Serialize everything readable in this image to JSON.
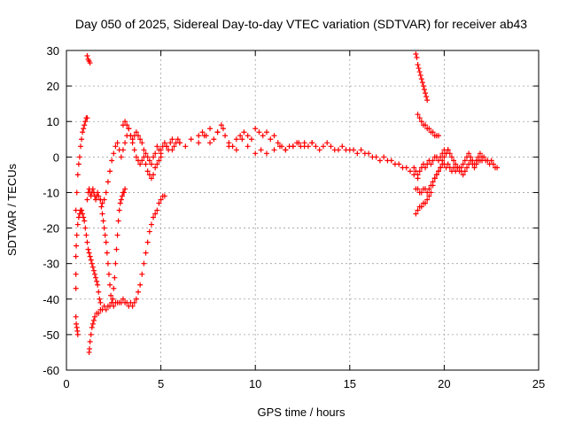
{
  "chart_data": {
    "type": "scatter",
    "title": "Day 050 of 2025, Sidereal Day-to-day VTEC variation (SDTVAR) for receiver ab43",
    "xlabel": "GPS time / hours",
    "ylabel": "SDTVAR / TECUs",
    "xlim": [
      0,
      25
    ],
    "ylim": [
      -60,
      30
    ],
    "xticks": [
      0,
      5,
      10,
      15,
      20,
      25
    ],
    "yticks": [
      -60,
      -50,
      -40,
      -30,
      -20,
      -10,
      0,
      10,
      20,
      30
    ],
    "grid": true,
    "marker": "+",
    "color": "#ff0000",
    "series": [
      {
        "name": "s1",
        "x": [
          0.5,
          0.55,
          0.6,
          0.65,
          0.7,
          0.75,
          0.8,
          0.85,
          0.9,
          0.95,
          1.0,
          1.05,
          1.1
        ],
        "y": [
          -15,
          -10,
          -5,
          -2,
          0,
          3,
          5,
          7,
          8,
          9,
          10,
          11,
          11
        ]
      },
      {
        "name": "s2",
        "x": [
          0.5,
          0.52,
          0.55,
          0.58,
          0.6
        ],
        "y": [
          -45,
          -47,
          -48,
          -49,
          -50
        ]
      },
      {
        "name": "s3",
        "x": [
          0.5,
          0.5,
          0.5,
          0.52,
          0.55,
          0.6,
          0.65,
          0.7,
          0.75,
          0.8,
          0.85,
          0.9,
          0.95,
          1.0,
          1.05,
          1.1,
          1.15,
          1.2,
          1.25,
          1.3,
          1.35,
          1.4,
          1.45,
          1.5,
          1.55,
          1.6,
          1.65,
          1.7,
          1.75,
          1.8
        ],
        "y": [
          -37,
          -33,
          -28,
          -25,
          -22,
          -19,
          -17,
          -16,
          -15,
          -15,
          -16,
          -17,
          -18,
          -20,
          -22,
          -24,
          -26,
          -27,
          -28,
          -29,
          -30,
          -31,
          -32,
          -33,
          -34,
          -35,
          -36,
          -38,
          -40,
          -41
        ]
      },
      {
        "name": "s4",
        "x": [
          1.2,
          1.22,
          1.25,
          1.3,
          1.35,
          1.4,
          1.45,
          1.5,
          1.6,
          1.7,
          1.8,
          1.9,
          2.0,
          2.1,
          2.2,
          2.3,
          2.4,
          2.5,
          2.6,
          2.7,
          2.8,
          2.9,
          3.0,
          3.1,
          3.2,
          3.3,
          3.4,
          3.5,
          3.6,
          3.7,
          3.8,
          3.9,
          4.0,
          4.1,
          4.2,
          4.3,
          4.4,
          4.5,
          4.6,
          4.7,
          4.8,
          4.9,
          5.0,
          5.1,
          5.2
        ],
        "y": [
          -55,
          -54,
          -52,
          -50,
          -48,
          -47,
          -46,
          -45,
          -44,
          -44,
          -43,
          -43,
          -42,
          -43,
          -42,
          -42,
          -41,
          -42,
          -41,
          -41,
          -41,
          -41,
          -40,
          -41,
          -41,
          -42,
          -41,
          -42,
          -41,
          -40,
          -38,
          -36,
          -33,
          -30,
          -27,
          -24,
          -21,
          -19,
          -17,
          -16,
          -15,
          -13,
          -12,
          -11,
          -11
        ]
      },
      {
        "name": "s5",
        "x": [
          1.1,
          1.15,
          1.2,
          1.25,
          1.3,
          1.35,
          1.4,
          1.45,
          1.5,
          1.55,
          1.6,
          1.65,
          1.7,
          1.8,
          1.9,
          2.0,
          2.1,
          2.2,
          2.3,
          2.4,
          2.5,
          2.6,
          2.7,
          2.8,
          2.9,
          3.0,
          3.1,
          3.2,
          3.3,
          3.4,
          3.5,
          3.6,
          3.7,
          3.8,
          3.9,
          4.0,
          4.1,
          4.2,
          4.3,
          4.4,
          4.5,
          4.6,
          4.7,
          4.8,
          4.9,
          5.0,
          5.1,
          5.2,
          5.3,
          5.4,
          5.5,
          5.6,
          5.7,
          5.8,
          5.9,
          6.0
        ],
        "y": [
          -12,
          -10,
          -9,
          -10,
          -11,
          -10,
          -9,
          -10,
          -11,
          -12,
          -11,
          -10,
          -11,
          -12,
          -13,
          -12,
          -10,
          -7,
          -4,
          -1,
          1,
          3,
          4,
          2,
          0,
          2,
          4,
          6,
          8,
          6,
          5,
          6,
          7,
          6,
          5,
          4,
          2,
          1,
          0,
          -1,
          -2,
          0,
          1,
          3,
          2,
          1,
          3,
          4,
          3,
          2,
          4,
          5,
          3,
          4,
          5,
          4
        ]
      },
      {
        "name": "s6",
        "x": [
          1.8,
          1.85,
          1.9,
          1.95,
          2.0,
          2.05,
          2.1,
          2.15,
          2.2,
          2.25,
          2.3,
          2.35,
          2.4,
          2.45,
          2.5,
          2.55,
          2.6,
          2.65,
          2.7,
          2.75,
          2.8,
          2.85,
          2.9,
          2.95,
          3.0,
          3.05,
          3.1
        ],
        "y": [
          -12,
          -14,
          -16,
          -18,
          -20,
          -22,
          -24,
          -27,
          -30,
          -33,
          -36,
          -39,
          -41,
          -40,
          -37,
          -34,
          -30,
          -26,
          -22,
          -18,
          -15,
          -13,
          -12,
          -11,
          -10,
          -10,
          -9
        ]
      },
      {
        "name": "s7",
        "x": [
          1.1,
          1.15,
          1.2,
          1.25
        ],
        "y": [
          28.5,
          27.5,
          27,
          26.5
        ]
      },
      {
        "name": "s8",
        "x": [
          3.0,
          3.1,
          3.2,
          3.3,
          3.4,
          3.5,
          3.6,
          3.7,
          3.8,
          3.9,
          4.0,
          4.1,
          4.2,
          4.3,
          4.4,
          4.5,
          4.6,
          4.7,
          4.8,
          4.9,
          5.0
        ],
        "y": [
          9,
          10,
          9,
          8,
          6,
          4,
          2,
          0,
          -1,
          -2,
          -1,
          0,
          -2,
          -4,
          -5,
          -6,
          -5,
          -3,
          -2,
          -1,
          0
        ]
      },
      {
        "name": "s9",
        "x": [
          5.0,
          5.3,
          5.6,
          6.0,
          6.3,
          6.6,
          7.0,
          7.2,
          7.4,
          7.6,
          7.8,
          8.0,
          8.2,
          8.4,
          8.6,
          8.8,
          9.0,
          9.2,
          9.4,
          9.6,
          9.8,
          10.0,
          10.2,
          10.4,
          10.6,
          10.8,
          11.0,
          11.2,
          11.4,
          11.6,
          11.8,
          12.0,
          12.2,
          12.4,
          12.6,
          12.8,
          13.0,
          13.2,
          13.4,
          13.6,
          13.8,
          14.0,
          14.2,
          14.4,
          14.6,
          14.8,
          15.0,
          15.2,
          15.4,
          15.6,
          15.8,
          16.0,
          16.2,
          16.4,
          16.6,
          16.8,
          17.0,
          17.2,
          17.4,
          17.6,
          17.8,
          18.0,
          18.2,
          18.4,
          18.6
        ],
        "y": [
          2,
          3,
          2,
          4,
          3,
          5,
          6,
          7,
          6,
          8,
          5,
          7,
          9,
          6,
          4,
          3,
          5,
          6,
          7,
          6,
          5,
          8,
          7,
          6,
          7,
          5,
          6,
          4,
          3,
          2,
          3,
          3,
          4,
          3,
          4,
          3,
          4,
          3,
          2,
          3,
          4,
          3,
          2,
          2,
          3,
          2,
          2,
          2,
          1,
          2,
          1,
          1,
          0,
          0,
          -1,
          0,
          -1,
          -1,
          -2,
          -2,
          -3,
          -3,
          -4,
          -5,
          -6
        ]
      },
      {
        "name": "s10",
        "x": [
          7.0,
          7.3,
          7.6,
          8.0,
          8.3,
          8.6,
          9.0,
          9.3,
          9.6,
          10.0,
          10.3,
          10.6,
          11.0,
          11.3,
          11.6,
          12.0,
          12.3,
          12.6,
          13.0
        ],
        "y": [
          4,
          6,
          4,
          7,
          8,
          3,
          2,
          5,
          3,
          1,
          2,
          1,
          2,
          3,
          2,
          3,
          4,
          3,
          4
        ]
      },
      {
        "name": "s11",
        "x": [
          18.5,
          18.55,
          18.6,
          18.65,
          18.7,
          18.75,
          18.8,
          18.85,
          18.9,
          18.95,
          19.0,
          19.05,
          19.1
        ],
        "y": [
          29,
          28,
          26,
          25,
          24,
          23,
          22,
          21,
          20,
          19,
          18,
          17,
          16
        ]
      },
      {
        "name": "s12",
        "x": [
          18.6,
          18.7,
          18.8,
          18.9,
          19.0,
          19.1,
          19.2,
          19.3,
          19.4,
          19.5,
          19.6,
          19.7
        ],
        "y": [
          12,
          11,
          10,
          9,
          9,
          8,
          8,
          7,
          7,
          6,
          6,
          6
        ]
      },
      {
        "name": "s13",
        "x": [
          18.5,
          18.6,
          18.7,
          18.8,
          18.9,
          19.0,
          19.1,
          19.2,
          19.3,
          19.4,
          19.5,
          19.6,
          19.7,
          19.8,
          19.9,
          20.0,
          20.1,
          20.2,
          20.3,
          20.4,
          20.5,
          20.6,
          20.7,
          20.8,
          20.9,
          21.0,
          21.1,
          21.2,
          21.3,
          21.4,
          21.5,
          21.6,
          21.7,
          21.8,
          21.9,
          22.0,
          22.1,
          22.2,
          22.3,
          22.4,
          22.5,
          22.6,
          22.7,
          22.8
        ],
        "y": [
          -16,
          -15,
          -14,
          -14,
          -13,
          -13,
          -12,
          -11,
          -10,
          -8,
          -6,
          -5,
          -4,
          -3,
          -2,
          -2,
          -3,
          -2,
          -3,
          -4,
          -3,
          -4,
          -3,
          -3,
          -4,
          -5,
          -4,
          -3,
          -2,
          -1,
          -2,
          -3,
          -2,
          -1,
          -1,
          -1,
          0,
          -1,
          -1,
          -2,
          -1,
          -2,
          -3,
          -3
        ]
      },
      {
        "name": "s14",
        "x": [
          18.5,
          18.6,
          18.7,
          18.8,
          18.9,
          19.0,
          19.1,
          19.2,
          19.3,
          19.4,
          19.5,
          19.6,
          19.7,
          19.8,
          19.9,
          20.0,
          20.1,
          20.2,
          20.3,
          20.4,
          20.5,
          20.6,
          20.7,
          20.8,
          20.9,
          21.0,
          21.1,
          21.2,
          21.3,
          21.4,
          21.5,
          21.6,
          21.7,
          21.8,
          21.9,
          22.0
        ],
        "y": [
          -9,
          -9,
          -10,
          -10,
          -9,
          -9,
          -10,
          -9,
          -8,
          -7,
          -6,
          -5,
          -4,
          -3,
          -1,
          0,
          1,
          2,
          1,
          0,
          -1,
          -2,
          -3,
          -4,
          -3,
          -2,
          -1,
          0,
          1,
          0,
          -1,
          -2,
          -1,
          0,
          1,
          0
        ]
      },
      {
        "name": "s15",
        "x": [
          18.4,
          18.5,
          18.6,
          18.7,
          18.8,
          18.9,
          19.0,
          19.1,
          19.2,
          19.3,
          19.4,
          19.5,
          19.6,
          19.7,
          19.8,
          19.9,
          20.0,
          20.1,
          20.2
        ],
        "y": [
          -3,
          -4,
          -5,
          -4,
          -3,
          -2,
          -3,
          -2,
          -1,
          -2,
          -1,
          0,
          0,
          -1,
          0,
          1,
          2,
          1,
          2
        ]
      }
    ]
  }
}
